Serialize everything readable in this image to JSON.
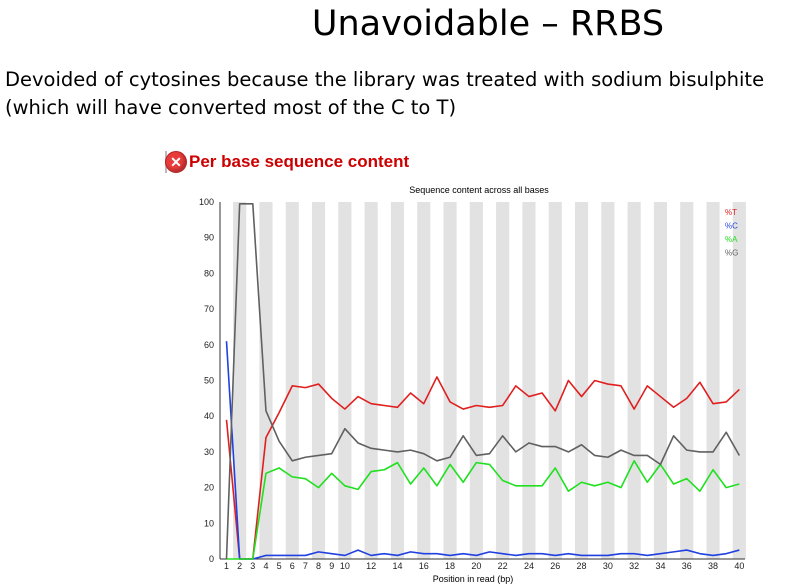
{
  "slide": {
    "title": "Unavoidable – RRBS",
    "body_line1": "Devoided of cytosines because the library was treated with sodium bisulphite",
    "body_line2": "(which will have converted most of the C to T)"
  },
  "panel": {
    "icon": "error-x-icon",
    "title": "Per base sequence content"
  },
  "chart_data": {
    "type": "line",
    "title": "Sequence content across all bases",
    "xlabel": "Position in read (bp)",
    "ylabel": "",
    "ylim": [
      0,
      100
    ],
    "yticks": [
      0,
      10,
      20,
      30,
      40,
      50,
      60,
      70,
      80,
      90,
      100
    ],
    "xtick_labels": [
      "1",
      "2",
      "3",
      "4",
      "5",
      "6",
      "7",
      "8",
      "9",
      "10",
      "12",
      "14",
      "16",
      "18",
      "20",
      "22",
      "24",
      "26",
      "28",
      "30",
      "32",
      "34",
      "36",
      "38",
      "40"
    ],
    "x": [
      1,
      2,
      3,
      4,
      5,
      6,
      7,
      8,
      9,
      10,
      11,
      12,
      13,
      14,
      15,
      16,
      17,
      18,
      19,
      20,
      21,
      22,
      23,
      24,
      25,
      26,
      27,
      28,
      29,
      30,
      31,
      32,
      33,
      34,
      35,
      36,
      37,
      38,
      39,
      40
    ],
    "grid": "alternating vertical bands",
    "legend_position": "top-right",
    "series": [
      {
        "name": "%T",
        "color": "#e02020",
        "values": [
          39,
          0,
          0,
          34,
          41,
          48.5,
          48,
          49,
          45,
          42,
          45.5,
          43.5,
          43,
          42.5,
          46.5,
          43.5,
          51,
          44,
          42,
          43,
          42.5,
          43,
          48.5,
          45.5,
          46.5,
          41.5,
          50,
          45.5,
          50,
          49,
          48.5,
          42,
          48.5,
          45.5,
          42.5,
          45,
          49.5,
          43.5,
          44,
          47.5
        ]
      },
      {
        "name": "%C",
        "color": "#2040e0",
        "values": [
          61,
          0,
          0,
          1,
          1,
          1,
          1,
          2,
          1.5,
          1,
          2.5,
          1,
          1.5,
          1,
          2,
          1.5,
          1.5,
          1,
          1.5,
          1,
          2,
          1.5,
          1,
          1.5,
          1.5,
          1,
          1.5,
          1,
          1,
          1,
          1.5,
          1.5,
          1,
          1.5,
          2,
          2.5,
          1.5,
          1,
          1.5,
          2.5
        ]
      },
      {
        "name": "%A",
        "color": "#20e020",
        "values": [
          0,
          0,
          0,
          24,
          25.5,
          23,
          22.5,
          20,
          24,
          20.5,
          19.5,
          24.5,
          25,
          27,
          21,
          25.5,
          20.5,
          26.5,
          21.5,
          27,
          26.5,
          22,
          20.5,
          20.5,
          20.5,
          25.5,
          19,
          21.5,
          20.5,
          21.5,
          20,
          27.5,
          21.5,
          26.5,
          21,
          22.5,
          19,
          25,
          20,
          21
        ]
      },
      {
        "name": "%G",
        "color": "#606060",
        "values": [
          0,
          99.5,
          99.5,
          41.5,
          33,
          27.5,
          28.5,
          29,
          29.5,
          36.5,
          32.5,
          31,
          30.5,
          30,
          30.5,
          29.5,
          27.5,
          28.5,
          34.5,
          29,
          29.5,
          34.5,
          30,
          32.5,
          31.5,
          31.5,
          30,
          32,
          29,
          28.5,
          30.5,
          29,
          29,
          26.5,
          34.5,
          30.5,
          30,
          30,
          35.5,
          29
        ]
      }
    ]
  }
}
